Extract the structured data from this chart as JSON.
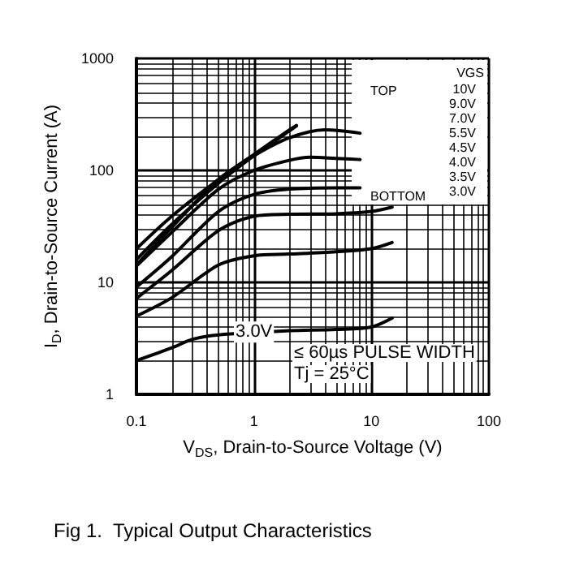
{
  "chart_data": {
    "type": "line",
    "title": "Fig 1.  Typical Output Characteristics",
    "xlabel": "V$_{DS}$, Drain-to-Source Voltage (V)",
    "ylabel": "I$_{D}$, Drain-to-Source Current (A)",
    "legend_title": "VGS",
    "legend": "top right",
    "log": "xy",
    "grid": true,
    "marker": "none",
    "line_style": "solid",
    "xlim": [
      0.1,
      100
    ],
    "ylim": [
      1,
      1000
    ],
    "xticks": [
      0.1,
      1,
      10,
      100
    ],
    "yticks": [
      1,
      10,
      100,
      1000
    ],
    "series": [
      {
        "name": "10V",
        "color": "#000000",
        "x": [
          0.1,
          0.2,
          0.5,
          1,
          2,
          2.3
        ],
        "values": [
          20,
          39,
          83,
          139,
          230,
          252
        ]
      },
      {
        "name": "9.0V",
        "color": "#000000",
        "x": [
          0.1,
          0.2,
          0.5,
          1,
          2,
          2.3
        ],
        "values": [
          16,
          33,
          77,
          135,
          225,
          250
        ]
      },
      {
        "name": "7.0V",
        "color": "#000000",
        "x": [
          0.1,
          0.2,
          0.5,
          1,
          2,
          4,
          8
        ],
        "values": [
          14.3,
          31,
          83,
          135,
          195,
          230,
          215
        ]
      },
      {
        "name": "5.5V",
        "color": "#000000",
        "x": [
          0.1,
          0.2,
          0.5,
          1,
          2,
          3,
          5,
          8
        ],
        "values": [
          14,
          28,
          68,
          100,
          123,
          131,
          128,
          125
        ]
      },
      {
        "name": "4.5V",
        "color": "#000000",
        "x": [
          0.1,
          0.2,
          0.5,
          1,
          2,
          5,
          8
        ],
        "values": [
          9.1,
          17,
          43,
          61,
          68,
          70,
          70
        ]
      },
      {
        "name": "4.0V",
        "color": "#000000",
        "x": [
          0.1,
          0.2,
          0.5,
          1,
          2,
          5,
          10,
          15
        ],
        "values": [
          7.2,
          12.8,
          29,
          39,
          40.6,
          41,
          43,
          47
        ]
      },
      {
        "name": "3.5V",
        "color": "#000000",
        "x": [
          0.1,
          0.2,
          0.5,
          1,
          2,
          5,
          10,
          15
        ],
        "values": [
          5,
          7.3,
          14.3,
          17.3,
          17.9,
          18.8,
          20,
          22.7
        ]
      },
      {
        "name": "3.0V",
        "color": "#000000",
        "x": [
          0.1,
          0.2,
          0.3,
          0.5,
          2,
          5,
          10,
          15
        ],
        "values": [
          2,
          2.6,
          3.1,
          3.4,
          3.7,
          3.8,
          4,
          4.8
        ]
      }
    ],
    "annotations": [
      {
        "text": "3.0V",
        "x": 1,
        "y": 3.6
      },
      "≤ 60µs PULSE WIDTH",
      "Tj = 25°C",
      "TOP",
      "BOTTOM"
    ]
  }
}
